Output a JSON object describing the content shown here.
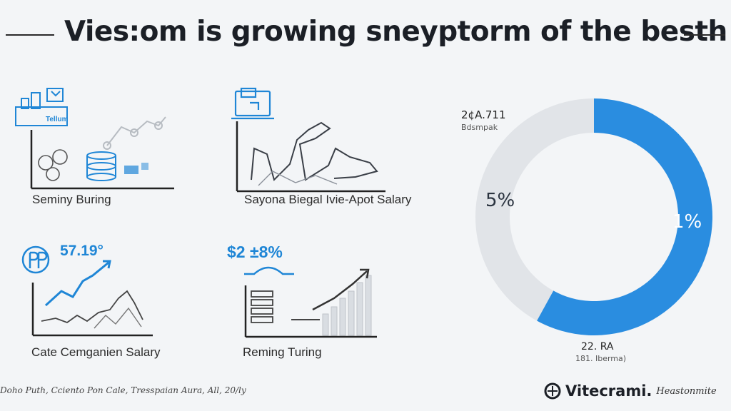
{
  "header": {
    "title": "Vies:om is growing sneyptorm of the besth"
  },
  "panels": [
    {
      "caption": "Seminy Buring",
      "icon": "laptop-icon",
      "tag": "Tellum"
    },
    {
      "caption": "Sayona Biegal Ivie-Apot Salary",
      "icon": "laptop-icon"
    },
    {
      "caption": "Cate Cemganien Salary",
      "icon": "pp-logo-icon",
      "value": "57.19°"
    },
    {
      "caption": "Reming Turing",
      "icon": "arch-icon",
      "value": "$2 ±8%"
    }
  ],
  "donut": {
    "top_value": "2¢A.711",
    "top_sub": "Bdsmpak",
    "left_label": "5%",
    "right_label": "1%",
    "bottom_value": "22. RA",
    "bottom_sub": "181. Iberma)",
    "colors": {
      "primary": "#2a8de0",
      "secondary": "#e1e4e8"
    }
  },
  "chart_data": {
    "type": "pie",
    "title": "Vies:om is growing sneyptorm of the besth",
    "categories": [
      "1%",
      "5%"
    ],
    "values": [
      58,
      42
    ],
    "legend": "none"
  },
  "footer": {
    "note": "Doho Puth, Cciento Pon Cale, Tresspaian Aura, All, 20/ly",
    "brand_name": "Vitecrami.",
    "brand_tag": "Heastonmite"
  }
}
